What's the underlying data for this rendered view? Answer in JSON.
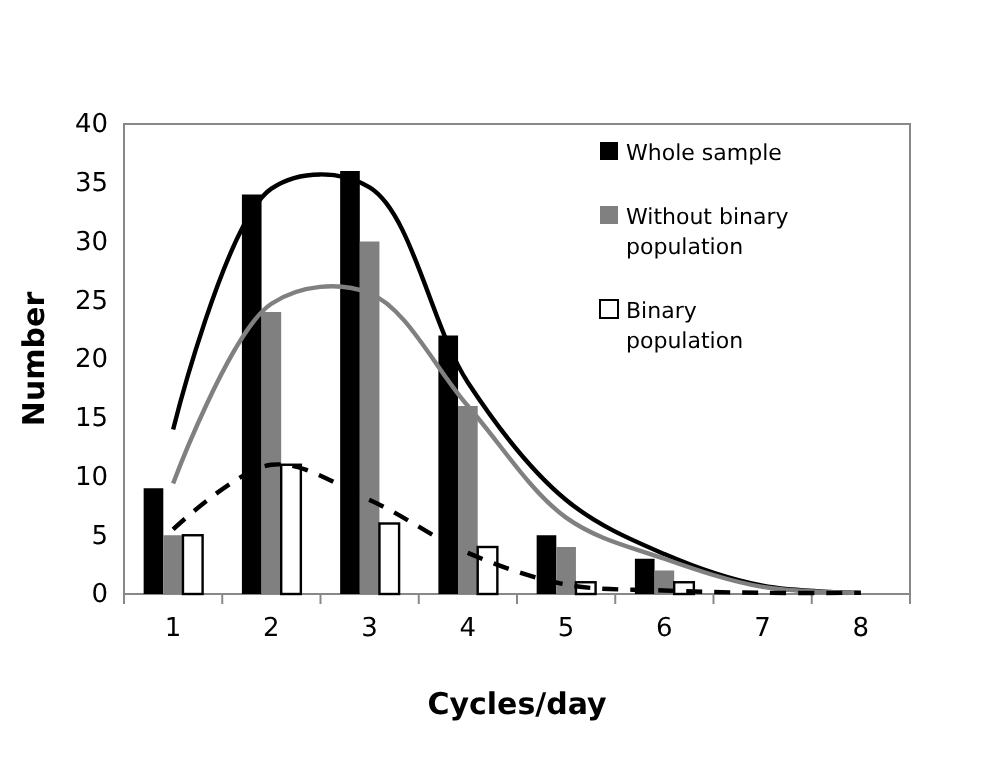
{
  "chart_data": {
    "type": "bar",
    "xlabel": "Cycles/day",
    "ylabel": "Number",
    "categories": [
      "1",
      "2",
      "3",
      "4",
      "5",
      "6",
      "7",
      "8"
    ],
    "series": [
      {
        "name": "Whole sample",
        "color": "#000000",
        "values": [
          9,
          34,
          36,
          22,
          5,
          3,
          0,
          0
        ]
      },
      {
        "name": "Without binary population",
        "color": "#808080",
        "values": [
          5,
          24,
          30,
          16,
          4,
          2,
          0,
          0
        ]
      },
      {
        "name": "Binary population",
        "color": "#ffffff",
        "values": [
          5,
          11,
          6,
          4,
          1,
          1,
          0,
          0
        ]
      },
      {
        "type": "line",
        "color": "#000000",
        "line_style": "solid",
        "values": [
          14,
          34.5,
          34.6,
          18,
          8,
          3.4,
          0.7,
          0.1
        ]
      },
      {
        "type": "line",
        "color": "#808080",
        "line_style": "solid",
        "values": [
          9.4,
          24.7,
          25.6,
          16,
          6.5,
          3,
          0.6,
          0.1
        ]
      },
      {
        "type": "line",
        "color": "#000000",
        "line_style": "dashed",
        "values": [
          5.5,
          11,
          8,
          3.5,
          0.8,
          0.3,
          0.1,
          0.1
        ]
      }
    ],
    "ylim": [
      0,
      40
    ],
    "yticks": [
      0,
      5,
      10,
      15,
      20,
      25,
      30,
      35,
      40
    ],
    "grid": false,
    "legend": "top right",
    "marker": "none"
  }
}
